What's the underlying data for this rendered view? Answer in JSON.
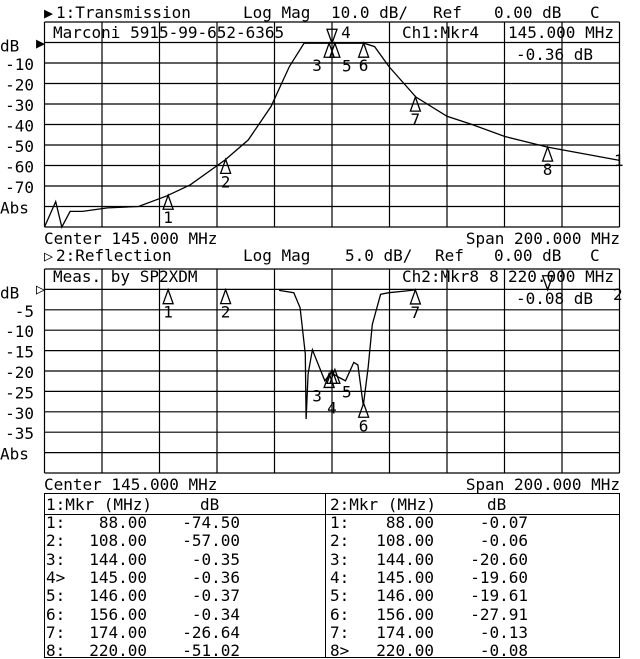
{
  "colors": {
    "background": "#ffffff",
    "ink": "#000000"
  },
  "channel1": {
    "indicator": "▶",
    "title": "1:Transmission",
    "format": "Log Mag",
    "scale": "10.0 dB/",
    "ref_label": "Ref",
    "ref_value": "0.00 dB",
    "flag": "C",
    "annotation": "Marconi 5915-99-652-6365",
    "active_marker": "Ch1:Mkr4",
    "marker_freq": "145.000 MHz",
    "marker_value": "-0.36 dB",
    "ref_arrow": "▶",
    "trace_end_label": "1",
    "center": "Center 145.000 MHz",
    "span": "Span 200.000 MHz"
  },
  "channel2": {
    "indicator": "▷",
    "title": "2:Reflection",
    "format": "Log Mag",
    "scale": "5.0 dB/",
    "ref_label": "Ref",
    "ref_value": "0.00 dB",
    "flag": "C",
    "annotation": "Meas. by SP2XDM",
    "active_marker": "Ch2:Mkr8",
    "marker_freq": "220.000 MHz",
    "marker_value": "-0.08 dB",
    "ref_arrow": "▷",
    "trace_end_label": "2",
    "center": "Center 145.000 MHz",
    "span": "Span 200.000 MHz"
  },
  "chart_data": [
    {
      "type": "line",
      "title": "1:Transmission",
      "xlabel": "Center 145.000 MHz / Span 200.000 MHz",
      "ylabel": "dB",
      "xlim": [
        45,
        245
      ],
      "ylim": [
        -90,
        10
      ],
      "grid": true,
      "yticks": [
        "dB",
        "-10",
        "-20",
        "-30",
        "-40",
        "-50",
        "-60",
        "-70",
        "Abs"
      ],
      "series": [
        {
          "x": [
            45,
            48.9,
            51,
            53.9,
            58.2,
            66.9,
            77.7,
            87.6,
            95.7,
            107.9,
            115.9,
            123.8,
            130.2,
            135.3,
            140,
            145,
            150,
            156.1,
            159.8,
            164.8,
            174.2,
            185,
            193.7,
            205,
            220,
            245
          ],
          "y": [
            -91,
            -77.6,
            -91,
            -82.4,
            -82.4,
            -80.7,
            -80,
            -74.8,
            -69.4,
            -57.2,
            -47.5,
            -31.2,
            -11.7,
            -0.35,
            -0.35,
            -0.36,
            -0.36,
            -0.34,
            -2,
            -11.7,
            -26.6,
            -36,
            -40,
            -45.8,
            -51,
            -57.5
          ]
        }
      ],
      "active_marker": 4,
      "markers": [
        {
          "n": "1",
          "x": 88,
          "y": -74.5
        },
        {
          "n": "2",
          "x": 108,
          "y": -57.0
        },
        {
          "n": "3",
          "x": 144,
          "y": -0.35
        },
        {
          "n": "4",
          "x": 145,
          "y": -0.36
        },
        {
          "n": "5",
          "x": 146,
          "y": -0.37
        },
        {
          "n": "6",
          "x": 156,
          "y": -0.34
        },
        {
          "n": "7",
          "x": 174,
          "y": -26.64
        },
        {
          "n": "8",
          "x": 220,
          "y": -51.02
        }
      ]
    },
    {
      "type": "line",
      "title": "2:Reflection",
      "xlabel": "Center 145.000 MHz / Span 200.000 MHz",
      "ylabel": "dB",
      "xlim": [
        45,
        245
      ],
      "ylim": [
        -45,
        5
      ],
      "grid": true,
      "yticks": [
        "dB",
        "-5",
        "-10",
        "-15",
        "-20",
        "-25",
        "-30",
        "-35",
        "Abs"
      ],
      "series": [
        {
          "x": [
            126.6,
            131.7,
            133.9,
            135.7,
            136,
            136.7,
            138.2,
            142.5,
            144.7,
            147.5,
            149.7,
            152.6,
            154,
            155.9,
            157.6,
            159,
            161.9,
            164.8,
            170.6,
            174
          ],
          "y": [
            -0.25,
            -0.8,
            -4.5,
            -15.8,
            -31.8,
            -20.7,
            -14.8,
            -22.4,
            -20.4,
            -21.6,
            -22.4,
            -17.9,
            -18.5,
            -28.5,
            -19,
            -8.6,
            -1.2,
            -0.8,
            -0.4,
            -0.13
          ]
        }
      ],
      "active_marker": 8,
      "markers": [
        {
          "n": "1",
          "x": 88,
          "y": -0.07
        },
        {
          "n": "2",
          "x": 108,
          "y": -0.06
        },
        {
          "n": "3",
          "x": 144,
          "y": -20.6
        },
        {
          "n": "4",
          "x": 145,
          "y": -19.6
        },
        {
          "n": "5",
          "x": 146,
          "y": -19.61
        },
        {
          "n": "6",
          "x": 156,
          "y": -27.91
        },
        {
          "n": "7",
          "x": 174,
          "y": -0.13
        },
        {
          "n": "8",
          "x": 220,
          "y": -0.08
        }
      ]
    }
  ],
  "table": {
    "left": {
      "header_mkr": "1:Mkr (MHz)",
      "header_db": "dB",
      "rows": [
        {
          "label": "1:",
          "freq": "88.00",
          "db": "-74.50"
        },
        {
          "label": "2:",
          "freq": "108.00",
          "db": "-57.00"
        },
        {
          "label": "3:",
          "freq": "144.00",
          "db": "-0.35"
        },
        {
          "label": "4>",
          "freq": "145.00",
          "db": "-0.36"
        },
        {
          "label": "5:",
          "freq": "146.00",
          "db": "-0.37"
        },
        {
          "label": "6:",
          "freq": "156.00",
          "db": "-0.34"
        },
        {
          "label": "7:",
          "freq": "174.00",
          "db": "-26.64"
        },
        {
          "label": "8:",
          "freq": "220.00",
          "db": "-51.02"
        }
      ]
    },
    "right": {
      "header_mkr": "2:Mkr (MHz)",
      "header_db": "dB",
      "rows": [
        {
          "label": "1:",
          "freq": "88.00",
          "db": "-0.07"
        },
        {
          "label": "2:",
          "freq": "108.00",
          "db": "-0.06"
        },
        {
          "label": "3:",
          "freq": "144.00",
          "db": "-20.60"
        },
        {
          "label": "4:",
          "freq": "145.00",
          "db": "-19.60"
        },
        {
          "label": "5:",
          "freq": "146.00",
          "db": "-19.61"
        },
        {
          "label": "6:",
          "freq": "156.00",
          "db": "-27.91"
        },
        {
          "label": "7:",
          "freq": "174.00",
          "db": "-0.13"
        },
        {
          "label": "8>",
          "freq": "220.00",
          "db": "-0.08"
        }
      ]
    }
  }
}
